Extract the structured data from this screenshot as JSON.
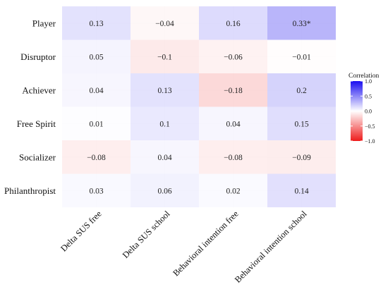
{
  "chart_data": {
    "type": "heatmap",
    "rows": [
      "Player",
      "Disruptor",
      "Achiever",
      "Free Spirit",
      "Socializer",
      "Philanthropist"
    ],
    "columns": [
      "Delta SUS free",
      "Delta SUS school",
      "Behavioral intention free",
      "Behavioral intention school"
    ],
    "values": [
      [
        0.13,
        -0.04,
        0.16,
        0.33
      ],
      [
        0.05,
        -0.1,
        -0.06,
        -0.01
      ],
      [
        0.04,
        0.13,
        -0.18,
        0.2
      ],
      [
        0.01,
        0.1,
        0.04,
        0.15
      ],
      [
        -0.08,
        0.04,
        -0.08,
        -0.09
      ],
      [
        0.03,
        0.06,
        0.02,
        0.14
      ]
    ],
    "labels": [
      [
        "0.13",
        "−0.04",
        "0.16",
        "0.33*"
      ],
      [
        "0.05",
        "−0.1",
        "−0.06",
        "−0.01"
      ],
      [
        "0.04",
        "0.13",
        "−0.18",
        "0.2"
      ],
      [
        "0.01",
        "0.1",
        "0.04",
        "0.15"
      ],
      [
        "−0.08",
        "0.04",
        "−0.08",
        "−0.09"
      ],
      [
        "0.03",
        "0.06",
        "0.02",
        "0.14"
      ]
    ],
    "legend": {
      "title": "Correlation",
      "ticks": [
        "1.0",
        "0.5",
        "0.0",
        "−0.5",
        "−1.0"
      ],
      "range": [
        -1,
        1
      ],
      "position": "right",
      "colors": {
        "high": "#1a0ef0",
        "mid": "#ffffff",
        "low": "#ee1c1c"
      }
    },
    "grid": true
  }
}
